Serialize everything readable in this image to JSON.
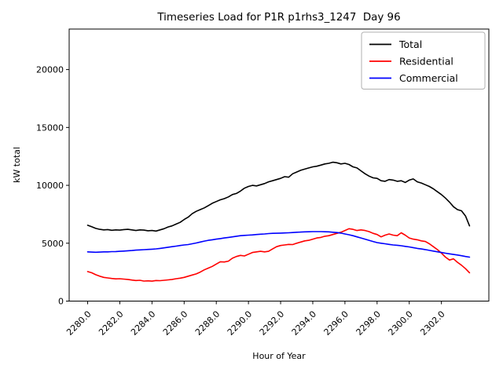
{
  "chart_data": {
    "type": "line",
    "title": "Timeseries Load for P1R p1rhs3_1247  Day 96",
    "xlabel": "Hour of Year",
    "ylabel": "kW total",
    "x_start": 2280.0,
    "x_step": 0.25,
    "x_ticks": [
      2280,
      2282,
      2284,
      2286,
      2288,
      2290,
      2292,
      2294,
      2296,
      2298,
      2300,
      2302
    ],
    "x_tick_labels": [
      "2280.0",
      "2282.0",
      "2284.0",
      "2286.0",
      "2288.0",
      "2290.0",
      "2292.0",
      "2294.0",
      "2296.0",
      "2298.0",
      "2300.0",
      "2302.0"
    ],
    "y_ticks": [
      0,
      5000,
      10000,
      15000,
      20000
    ],
    "y_tick_labels": [
      "0",
      "5000",
      "10000",
      "15000",
      "20000"
    ],
    "xlim": [
      2278.85,
      2304.95
    ],
    "ylim": [
      0,
      23500
    ],
    "grid": false,
    "legend_position": "upper right",
    "series": [
      {
        "name": "Total",
        "color": "#000000",
        "values": [
          6550,
          6420,
          6280,
          6200,
          6150,
          6180,
          6120,
          6150,
          6130,
          6180,
          6200,
          6150,
          6100,
          6150,
          6130,
          6080,
          6100,
          6050,
          6150,
          6250,
          6400,
          6500,
          6650,
          6800,
          7050,
          7250,
          7550,
          7750,
          7900,
          8050,
          8250,
          8450,
          8600,
          8750,
          8850,
          9000,
          9200,
          9300,
          9500,
          9750,
          9900,
          10000,
          9950,
          10050,
          10150,
          10300,
          10400,
          10500,
          10600,
          10750,
          10700,
          11000,
          11150,
          11300,
          11400,
          11500,
          11600,
          11650,
          11750,
          11850,
          11900,
          12000,
          11950,
          11850,
          11900,
          11800,
          11600,
          11500,
          11250,
          11000,
          10800,
          10650,
          10600,
          10400,
          10350,
          10500,
          10450,
          10350,
          10400,
          10250,
          10450,
          10550,
          10300,
          10200,
          10050,
          9900,
          9700,
          9450,
          9200,
          8900,
          8550,
          8150,
          7900,
          7800,
          7350,
          6500
        ]
      },
      {
        "name": "Residential",
        "color": "#ff0000",
        "values": [
          2550,
          2450,
          2280,
          2150,
          2050,
          2000,
          1950,
          1920,
          1930,
          1900,
          1870,
          1820,
          1780,
          1800,
          1730,
          1750,
          1720,
          1780,
          1760,
          1800,
          1830,
          1870,
          1930,
          1980,
          2050,
          2150,
          2250,
          2350,
          2500,
          2700,
          2850,
          3000,
          3200,
          3400,
          3380,
          3450,
          3700,
          3850,
          3950,
          3900,
          4050,
          4200,
          4250,
          4300,
          4250,
          4300,
          4500,
          4700,
          4800,
          4850,
          4900,
          4880,
          5000,
          5100,
          5200,
          5250,
          5350,
          5450,
          5500,
          5600,
          5650,
          5750,
          5850,
          5950,
          6100,
          6250,
          6200,
          6100,
          6150,
          6100,
          6000,
          5850,
          5750,
          5550,
          5700,
          5800,
          5700,
          5650,
          5900,
          5700,
          5450,
          5350,
          5300,
          5200,
          5150,
          4950,
          4700,
          4450,
          4150,
          3800,
          3550,
          3650,
          3350,
          3100,
          2800,
          2450
        ]
      },
      {
        "name": "Commercial",
        "color": "#0000ff",
        "values": [
          4250,
          4230,
          4220,
          4230,
          4250,
          4250,
          4270,
          4280,
          4300,
          4320,
          4350,
          4370,
          4400,
          4420,
          4440,
          4460,
          4480,
          4510,
          4550,
          4600,
          4650,
          4700,
          4750,
          4800,
          4850,
          4880,
          4950,
          5020,
          5100,
          5180,
          5250,
          5300,
          5350,
          5400,
          5450,
          5500,
          5550,
          5600,
          5650,
          5680,
          5700,
          5720,
          5750,
          5780,
          5800,
          5830,
          5850,
          5860,
          5870,
          5890,
          5900,
          5920,
          5950,
          5960,
          5980,
          5990,
          6000,
          6000,
          6000,
          5990,
          5980,
          5950,
          5920,
          5870,
          5800,
          5730,
          5650,
          5550,
          5450,
          5350,
          5250,
          5150,
          5050,
          5000,
          4950,
          4900,
          4850,
          4820,
          4780,
          4730,
          4680,
          4620,
          4550,
          4500,
          4450,
          4380,
          4320,
          4260,
          4200,
          4140,
          4080,
          4030,
          3980,
          3920,
          3850,
          3800
        ]
      }
    ]
  }
}
